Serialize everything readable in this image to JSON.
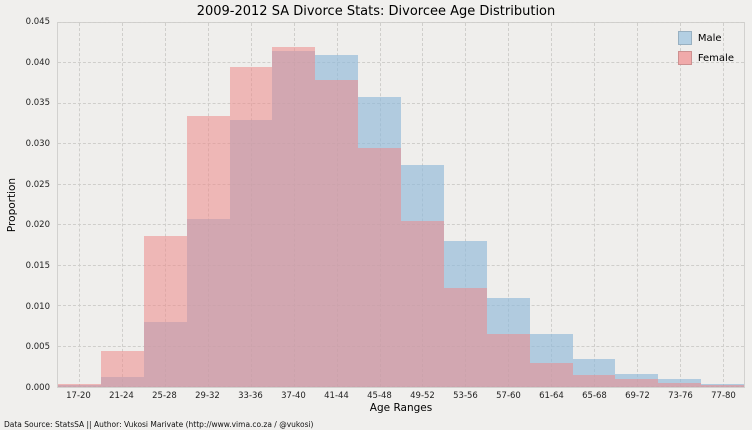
{
  "footer": "Data Source: StatsSA || Author: Vukosi Marivate (http://www.vima.co.za / @vukosi)",
  "chart_data": {
    "type": "bar",
    "title": "2009-2012 SA Divorce Stats: Divorcee Age Distribution",
    "xlabel": "Age Ranges",
    "ylabel": "Proportion",
    "ylim": [
      0,
      0.045
    ],
    "y_ticks": [
      0.0,
      0.005,
      0.01,
      0.015,
      0.02,
      0.025,
      0.03,
      0.035,
      0.04,
      0.045
    ],
    "grid": true,
    "legend_position": "upper right",
    "categories": [
      "17-20",
      "21-24",
      "25-28",
      "29-32",
      "33-36",
      "37-40",
      "41-44",
      "45-48",
      "49-52",
      "53-56",
      "57-60",
      "61-64",
      "65-68",
      "69-72",
      "73-76",
      "77-80"
    ],
    "series": [
      {
        "name": "Male",
        "color": "rgba(143,184,216,0.65)",
        "swatch_color": "#b3cfe3",
        "values": [
          0.0002,
          0.0012,
          0.008,
          0.0208,
          0.033,
          0.0415,
          0.041,
          0.0358,
          0.0275,
          0.018,
          0.011,
          0.0065,
          0.0035,
          0.0016,
          0.001,
          0.0004
        ]
      },
      {
        "name": "Female",
        "color": "rgba(237,139,139,0.55)",
        "swatch_color": "#f0aaaa",
        "values": [
          0.0004,
          0.0045,
          0.0187,
          0.0335,
          0.0396,
          0.042,
          0.038,
          0.0295,
          0.0205,
          0.0123,
          0.0065,
          0.003,
          0.0015,
          0.001,
          0.0005,
          0.0002
        ]
      }
    ]
  }
}
